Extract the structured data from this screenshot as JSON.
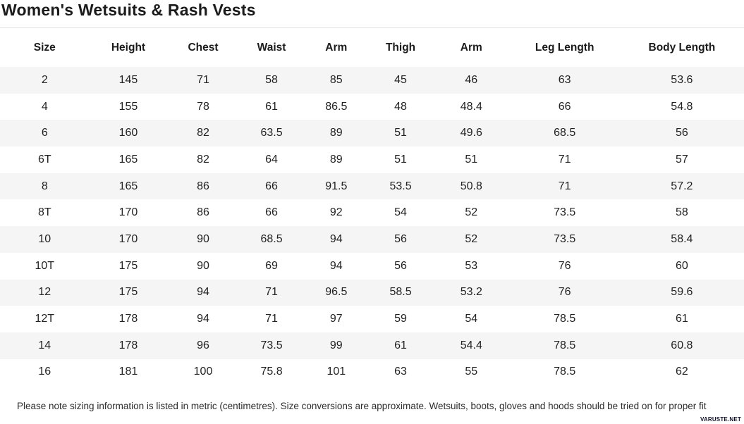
{
  "page": {
    "title": "Women's Wetsuits & Rash Vests",
    "note": "Please note sizing information is listed in metric (centimetres). Size conversions are approximate. Wetsuits, boots, gloves and hoods should be tried on for proper fit",
    "watermark": "VARUSTE.NET"
  },
  "colors": {
    "stripe": "#f5f5f5",
    "rule": "#e2e2e2",
    "title_text": "#1b1b1b",
    "cell_text": "#222222"
  },
  "chart_data": {
    "type": "table",
    "title": "Women's Wetsuits & Rash Vests",
    "columns": [
      "Size",
      "Height",
      "Chest",
      "Waist",
      "Arm",
      "Thigh",
      "Arm",
      "Leg Length",
      "Body Length"
    ],
    "rows": [
      [
        "2",
        "145",
        "71",
        "58",
        "85",
        "45",
        "46",
        "63",
        "53.6"
      ],
      [
        "4",
        "155",
        "78",
        "61",
        "86.5",
        "48",
        "48.4",
        "66",
        "54.8"
      ],
      [
        "6",
        "160",
        "82",
        "63.5",
        "89",
        "51",
        "49.6",
        "68.5",
        "56"
      ],
      [
        "6T",
        "165",
        "82",
        "64",
        "89",
        "51",
        "51",
        "71",
        "57"
      ],
      [
        "8",
        "165",
        "86",
        "66",
        "91.5",
        "53.5",
        "50.8",
        "71",
        "57.2"
      ],
      [
        "8T",
        "170",
        "86",
        "66",
        "92",
        "54",
        "52",
        "73.5",
        "58"
      ],
      [
        "10",
        "170",
        "90",
        "68.5",
        "94",
        "56",
        "52",
        "73.5",
        "58.4"
      ],
      [
        "10T",
        "175",
        "90",
        "69",
        "94",
        "56",
        "53",
        "76",
        "60"
      ],
      [
        "12",
        "175",
        "94",
        "71",
        "96.5",
        "58.5",
        "53.2",
        "76",
        "59.6"
      ],
      [
        "12T",
        "178",
        "94",
        "71",
        "97",
        "59",
        "54",
        "78.5",
        "61"
      ],
      [
        "14",
        "178",
        "96",
        "73.5",
        "99",
        "61",
        "54.4",
        "78.5",
        "60.8"
      ],
      [
        "16",
        "181",
        "100",
        "75.8",
        "101",
        "63",
        "55",
        "78.5",
        "62"
      ]
    ]
  }
}
